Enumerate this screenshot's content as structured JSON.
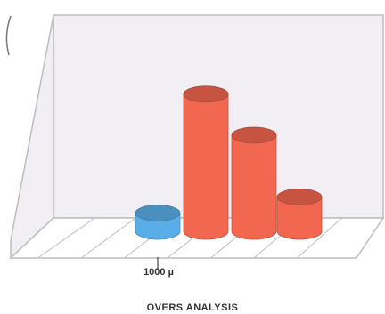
{
  "chart_data": {
    "type": "bar",
    "title": "OVERS ANALYSIS",
    "xlabel": "1000 µ",
    "categories": [
      "",
      "",
      "",
      ""
    ],
    "values": [
      8,
      60,
      42,
      15
    ],
    "ylim": [
      0,
      70
    ],
    "bar_colors": [
      "#5aaee8",
      "#f2674f",
      "#f2674f",
      "#f2674f"
    ],
    "grid": false
  },
  "colors": {
    "panel_back": "#f1eef4",
    "panel_edge": "#bdbdbd",
    "floor": "#ffffff"
  }
}
